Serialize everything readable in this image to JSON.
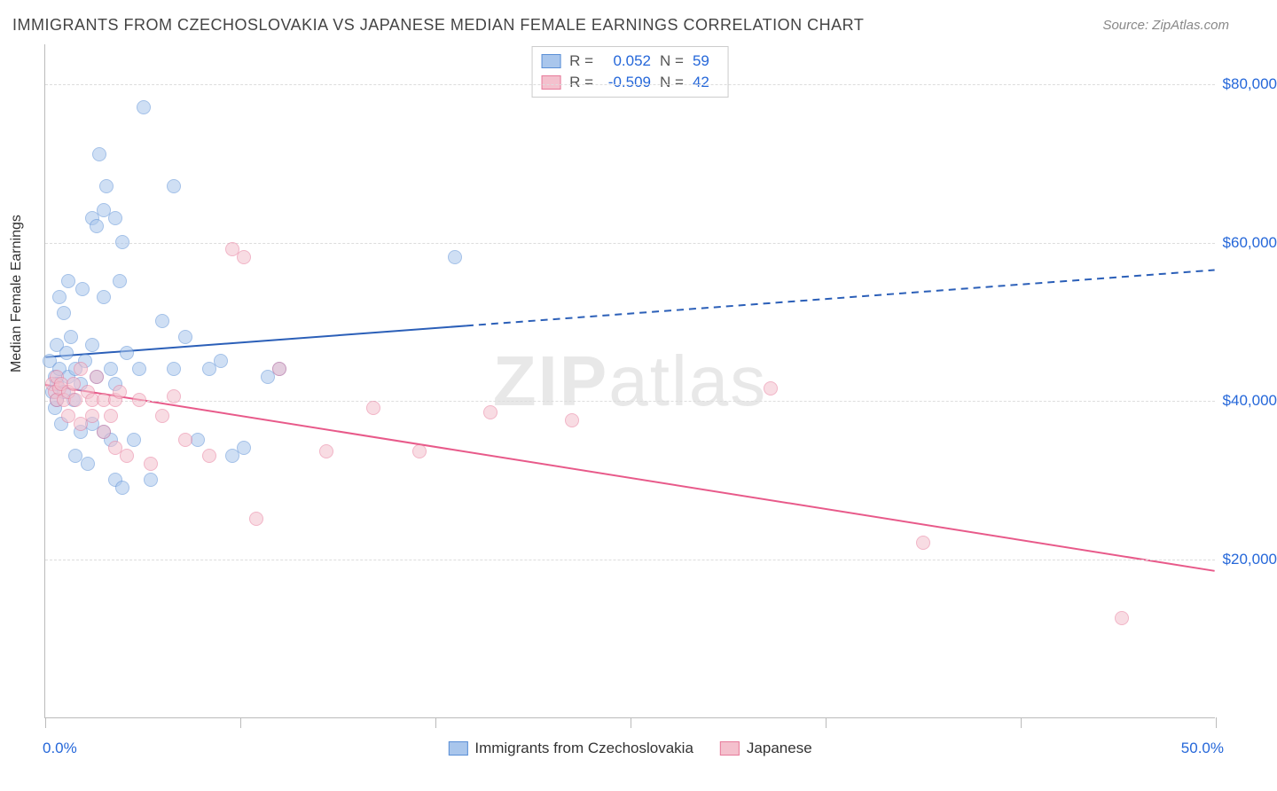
{
  "title": "IMMIGRANTS FROM CZECHOSLOVAKIA VS JAPANESE MEDIAN FEMALE EARNINGS CORRELATION CHART",
  "source": "Source: ZipAtlas.com",
  "ylabel": "Median Female Earnings",
  "watermark_part1": "ZIP",
  "watermark_part2": "atlas",
  "chart": {
    "type": "scatter",
    "background_color": "#ffffff",
    "grid_color": "#dddddd",
    "axis_color": "#bbbbbb",
    "label_color": "#333333",
    "value_color": "#2567d9",
    "xlim": [
      0,
      50
    ],
    "ylim": [
      0,
      85000
    ],
    "x_is_percent": true,
    "y_is_currency": true,
    "ygrid_values": [
      20000,
      40000,
      60000,
      80000
    ],
    "ygrid_labels": [
      "$20,000",
      "$40,000",
      "$60,000",
      "$80,000"
    ],
    "xtick_positions": [
      0,
      8.33,
      16.67,
      25,
      33.33,
      41.67,
      50
    ],
    "xaxis_left_label": "0.0%",
    "xaxis_right_label": "50.0%",
    "point_radius": 8,
    "point_opacity": 0.55,
    "line_width": 2
  },
  "series": [
    {
      "key": "blue",
      "label": "Immigrants from Czechoslovakia",
      "fill": "#a9c6ec",
      "stroke": "#5a8fd6",
      "line_color": "#2b5fb8",
      "R": "0.052",
      "N": "59",
      "trend": {
        "x1": 0,
        "y1": 45500,
        "x2": 50,
        "y2": 56500,
        "solid_until_x": 18
      },
      "points": [
        [
          0.2,
          45000
        ],
        [
          0.3,
          41000
        ],
        [
          0.4,
          43000
        ],
        [
          0.4,
          39000
        ],
        [
          0.5,
          47000
        ],
        [
          0.5,
          42000
        ],
        [
          0.5,
          40000
        ],
        [
          0.6,
          53000
        ],
        [
          0.6,
          44000
        ],
        [
          0.7,
          37000
        ],
        [
          0.8,
          51000
        ],
        [
          0.8,
          41000
        ],
        [
          0.9,
          46000
        ],
        [
          1.0,
          55000
        ],
        [
          1.0,
          43000
        ],
        [
          1.1,
          48000
        ],
        [
          1.2,
          40000
        ],
        [
          1.3,
          33000
        ],
        [
          1.3,
          44000
        ],
        [
          1.5,
          36000
        ],
        [
          1.5,
          42000
        ],
        [
          1.6,
          54000
        ],
        [
          1.7,
          45000
        ],
        [
          1.8,
          32000
        ],
        [
          2.0,
          47000
        ],
        [
          2.0,
          63000
        ],
        [
          2.2,
          62000
        ],
        [
          2.2,
          43000
        ],
        [
          2.3,
          71000
        ],
        [
          2.5,
          64000
        ],
        [
          2.5,
          53000
        ],
        [
          2.5,
          36000
        ],
        [
          2.6,
          67000
        ],
        [
          2.8,
          44000
        ],
        [
          2.8,
          35000
        ],
        [
          3.0,
          63000
        ],
        [
          3.0,
          42000
        ],
        [
          3.0,
          30000
        ],
        [
          3.2,
          55000
        ],
        [
          3.3,
          60000
        ],
        [
          3.3,
          29000
        ],
        [
          3.5,
          46000
        ],
        [
          3.8,
          35000
        ],
        [
          4.0,
          44000
        ],
        [
          4.2,
          77000
        ],
        [
          4.5,
          30000
        ],
        [
          5.0,
          50000
        ],
        [
          5.5,
          67000
        ],
        [
          5.5,
          44000
        ],
        [
          6.0,
          48000
        ],
        [
          6.5,
          35000
        ],
        [
          7.0,
          44000
        ],
        [
          7.5,
          45000
        ],
        [
          8.0,
          33000
        ],
        [
          8.5,
          34000
        ],
        [
          9.5,
          43000
        ],
        [
          10.0,
          44000
        ],
        [
          17.5,
          58000
        ],
        [
          2.0,
          37000
        ]
      ]
    },
    {
      "key": "pink",
      "label": "Japanese",
      "fill": "#f4c0cd",
      "stroke": "#e77a9a",
      "line_color": "#e85a8a",
      "R": "-0.509",
      "N": "42",
      "trend": {
        "x1": 0,
        "y1": 42000,
        "x2": 50,
        "y2": 18500,
        "solid_until_x": 50
      },
      "points": [
        [
          0.3,
          42000
        ],
        [
          0.4,
          41000
        ],
        [
          0.5,
          43000
        ],
        [
          0.5,
          40000
        ],
        [
          0.6,
          41500
        ],
        [
          0.7,
          42000
        ],
        [
          0.8,
          40000
        ],
        [
          1.0,
          41000
        ],
        [
          1.0,
          38000
        ],
        [
          1.2,
          42000
        ],
        [
          1.3,
          40000
        ],
        [
          1.5,
          44000
        ],
        [
          1.5,
          37000
        ],
        [
          1.8,
          41000
        ],
        [
          2.0,
          38000
        ],
        [
          2.0,
          40000
        ],
        [
          2.2,
          43000
        ],
        [
          2.5,
          40000
        ],
        [
          2.5,
          36000
        ],
        [
          2.8,
          38000
        ],
        [
          3.0,
          40000
        ],
        [
          3.0,
          34000
        ],
        [
          3.2,
          41000
        ],
        [
          3.5,
          33000
        ],
        [
          4.0,
          40000
        ],
        [
          4.5,
          32000
        ],
        [
          5.0,
          38000
        ],
        [
          5.5,
          40500
        ],
        [
          6.0,
          35000
        ],
        [
          7.0,
          33000
        ],
        [
          8.0,
          59000
        ],
        [
          8.5,
          58000
        ],
        [
          9.0,
          25000
        ],
        [
          10.0,
          44000
        ],
        [
          12.0,
          33500
        ],
        [
          14.0,
          39000
        ],
        [
          16.0,
          33500
        ],
        [
          19.0,
          38500
        ],
        [
          22.5,
          37500
        ],
        [
          31.0,
          41500
        ],
        [
          37.5,
          22000
        ],
        [
          46.0,
          12500
        ]
      ]
    }
  ]
}
